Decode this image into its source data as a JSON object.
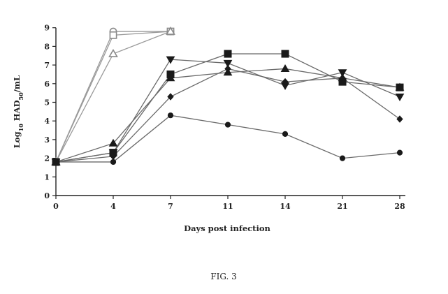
{
  "chart_data": {
    "type": "line",
    "xlabel": "Days post infection",
    "ylabel": "Log₁₀ HAD₅₀/mL",
    "categories": [
      "0",
      "4",
      "7",
      "11",
      "14",
      "21",
      "28"
    ],
    "ylim": [
      0,
      9
    ],
    "yticks": [
      0,
      1,
      2,
      3,
      4,
      5,
      6,
      7,
      8,
      9
    ],
    "grid": false,
    "legend": "none",
    "series": [
      {
        "marker": "circle-open",
        "values": [
          1.8,
          8.8,
          8.8,
          null,
          null,
          null,
          null
        ]
      },
      {
        "marker": "square-open",
        "values": [
          1.8,
          8.6,
          8.8,
          null,
          null,
          null,
          null
        ]
      },
      {
        "marker": "triangle-open",
        "values": [
          1.8,
          7.6,
          8.8,
          null,
          null,
          null,
          null
        ]
      },
      {
        "marker": "triangle-down",
        "values": [
          1.8,
          2.3,
          7.3,
          7.1,
          5.9,
          6.6,
          5.3
        ]
      },
      {
        "marker": "square",
        "values": [
          1.8,
          2.3,
          6.5,
          7.6,
          7.6,
          6.1,
          5.8
        ]
      },
      {
        "marker": "triangle-up",
        "values": [
          1.8,
          2.8,
          6.3,
          6.6,
          6.8,
          6.3,
          5.8
        ]
      },
      {
        "marker": "diamond",
        "values": [
          1.8,
          2.1,
          5.3,
          6.8,
          6.1,
          6.3,
          4.1
        ]
      },
      {
        "marker": "circle",
        "values": [
          1.8,
          1.8,
          4.3,
          3.8,
          3.3,
          2.0,
          2.3
        ]
      }
    ]
  },
  "caption": "FIG. 3",
  "colors": {
    "line": "#6a6a6a",
    "marker": "#1a1a1a",
    "open_marker": "#8a8a8a",
    "axis": "#222222"
  }
}
